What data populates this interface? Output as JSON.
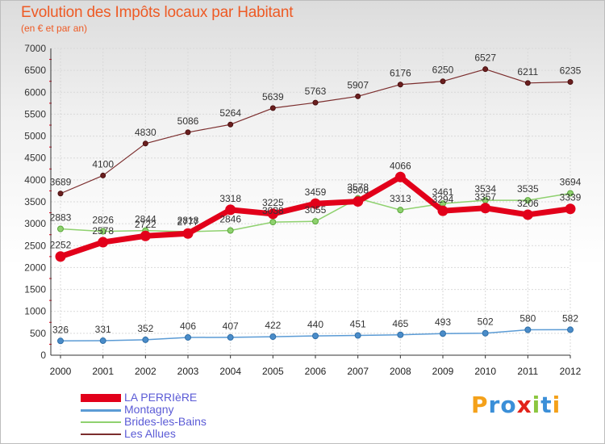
{
  "header": {
    "title": "Evolution des Impôts locaux par Habitant",
    "subtitle": "(en € et par an)"
  },
  "logo": {
    "text": "Proxiti",
    "letters": [
      {
        "char": "P",
        "color": "#f4a11a"
      },
      {
        "char": "r",
        "color": "#3b8fd8"
      },
      {
        "char": "o",
        "color": "#3b8fd8"
      },
      {
        "char": "x",
        "color": "#e2231a"
      },
      {
        "char": "i",
        "color": "#8cc63f"
      },
      {
        "char": "t",
        "color": "#3b8fd8"
      },
      {
        "char": "i",
        "color": "#f4a11a"
      }
    ]
  },
  "chart_data": {
    "type": "line",
    "title": "Evolution des Impôts locaux par Habitant",
    "subtitle": "(en € et par an)",
    "xlabel": "",
    "ylabel": "",
    "x": [
      "2000",
      "2001",
      "2002",
      "2003",
      "2004",
      "2005",
      "2006",
      "2007",
      "2008",
      "2009",
      "2010",
      "2011",
      "2012"
    ],
    "ylim": [
      0,
      7000
    ],
    "yticks": [
      0,
      500,
      1000,
      1500,
      2000,
      2500,
      3000,
      3500,
      4000,
      4500,
      5000,
      5500,
      6000,
      6500,
      7000
    ],
    "grid": true,
    "legend_position": "bottom-left",
    "series": [
      {
        "name": "LA PERRIèRE",
        "color": "#e2001a",
        "values": [
          2252,
          2578,
          2722,
          2777,
          3318,
          3225,
          3459,
          3508,
          4066,
          3294,
          3357,
          3206,
          3339
        ]
      },
      {
        "name": "Montagny",
        "color": "#5b9bd5",
        "values": [
          326,
          331,
          352,
          406,
          407,
          422,
          440,
          451,
          465,
          493,
          502,
          580,
          582
        ]
      },
      {
        "name": "Brides-les-Bains",
        "color": "#8fd16f",
        "values": [
          2883,
          2826,
          2844,
          2818,
          2846,
          3038,
          3055,
          3578,
          3313,
          3461,
          3534,
          3535,
          3694
        ]
      },
      {
        "name": "Les Allues",
        "color": "#7b2d2d",
        "values": [
          3689,
          4100,
          4830,
          5086,
          5264,
          5639,
          5763,
          5907,
          6176,
          6250,
          6527,
          6211,
          6235
        ]
      }
    ]
  }
}
